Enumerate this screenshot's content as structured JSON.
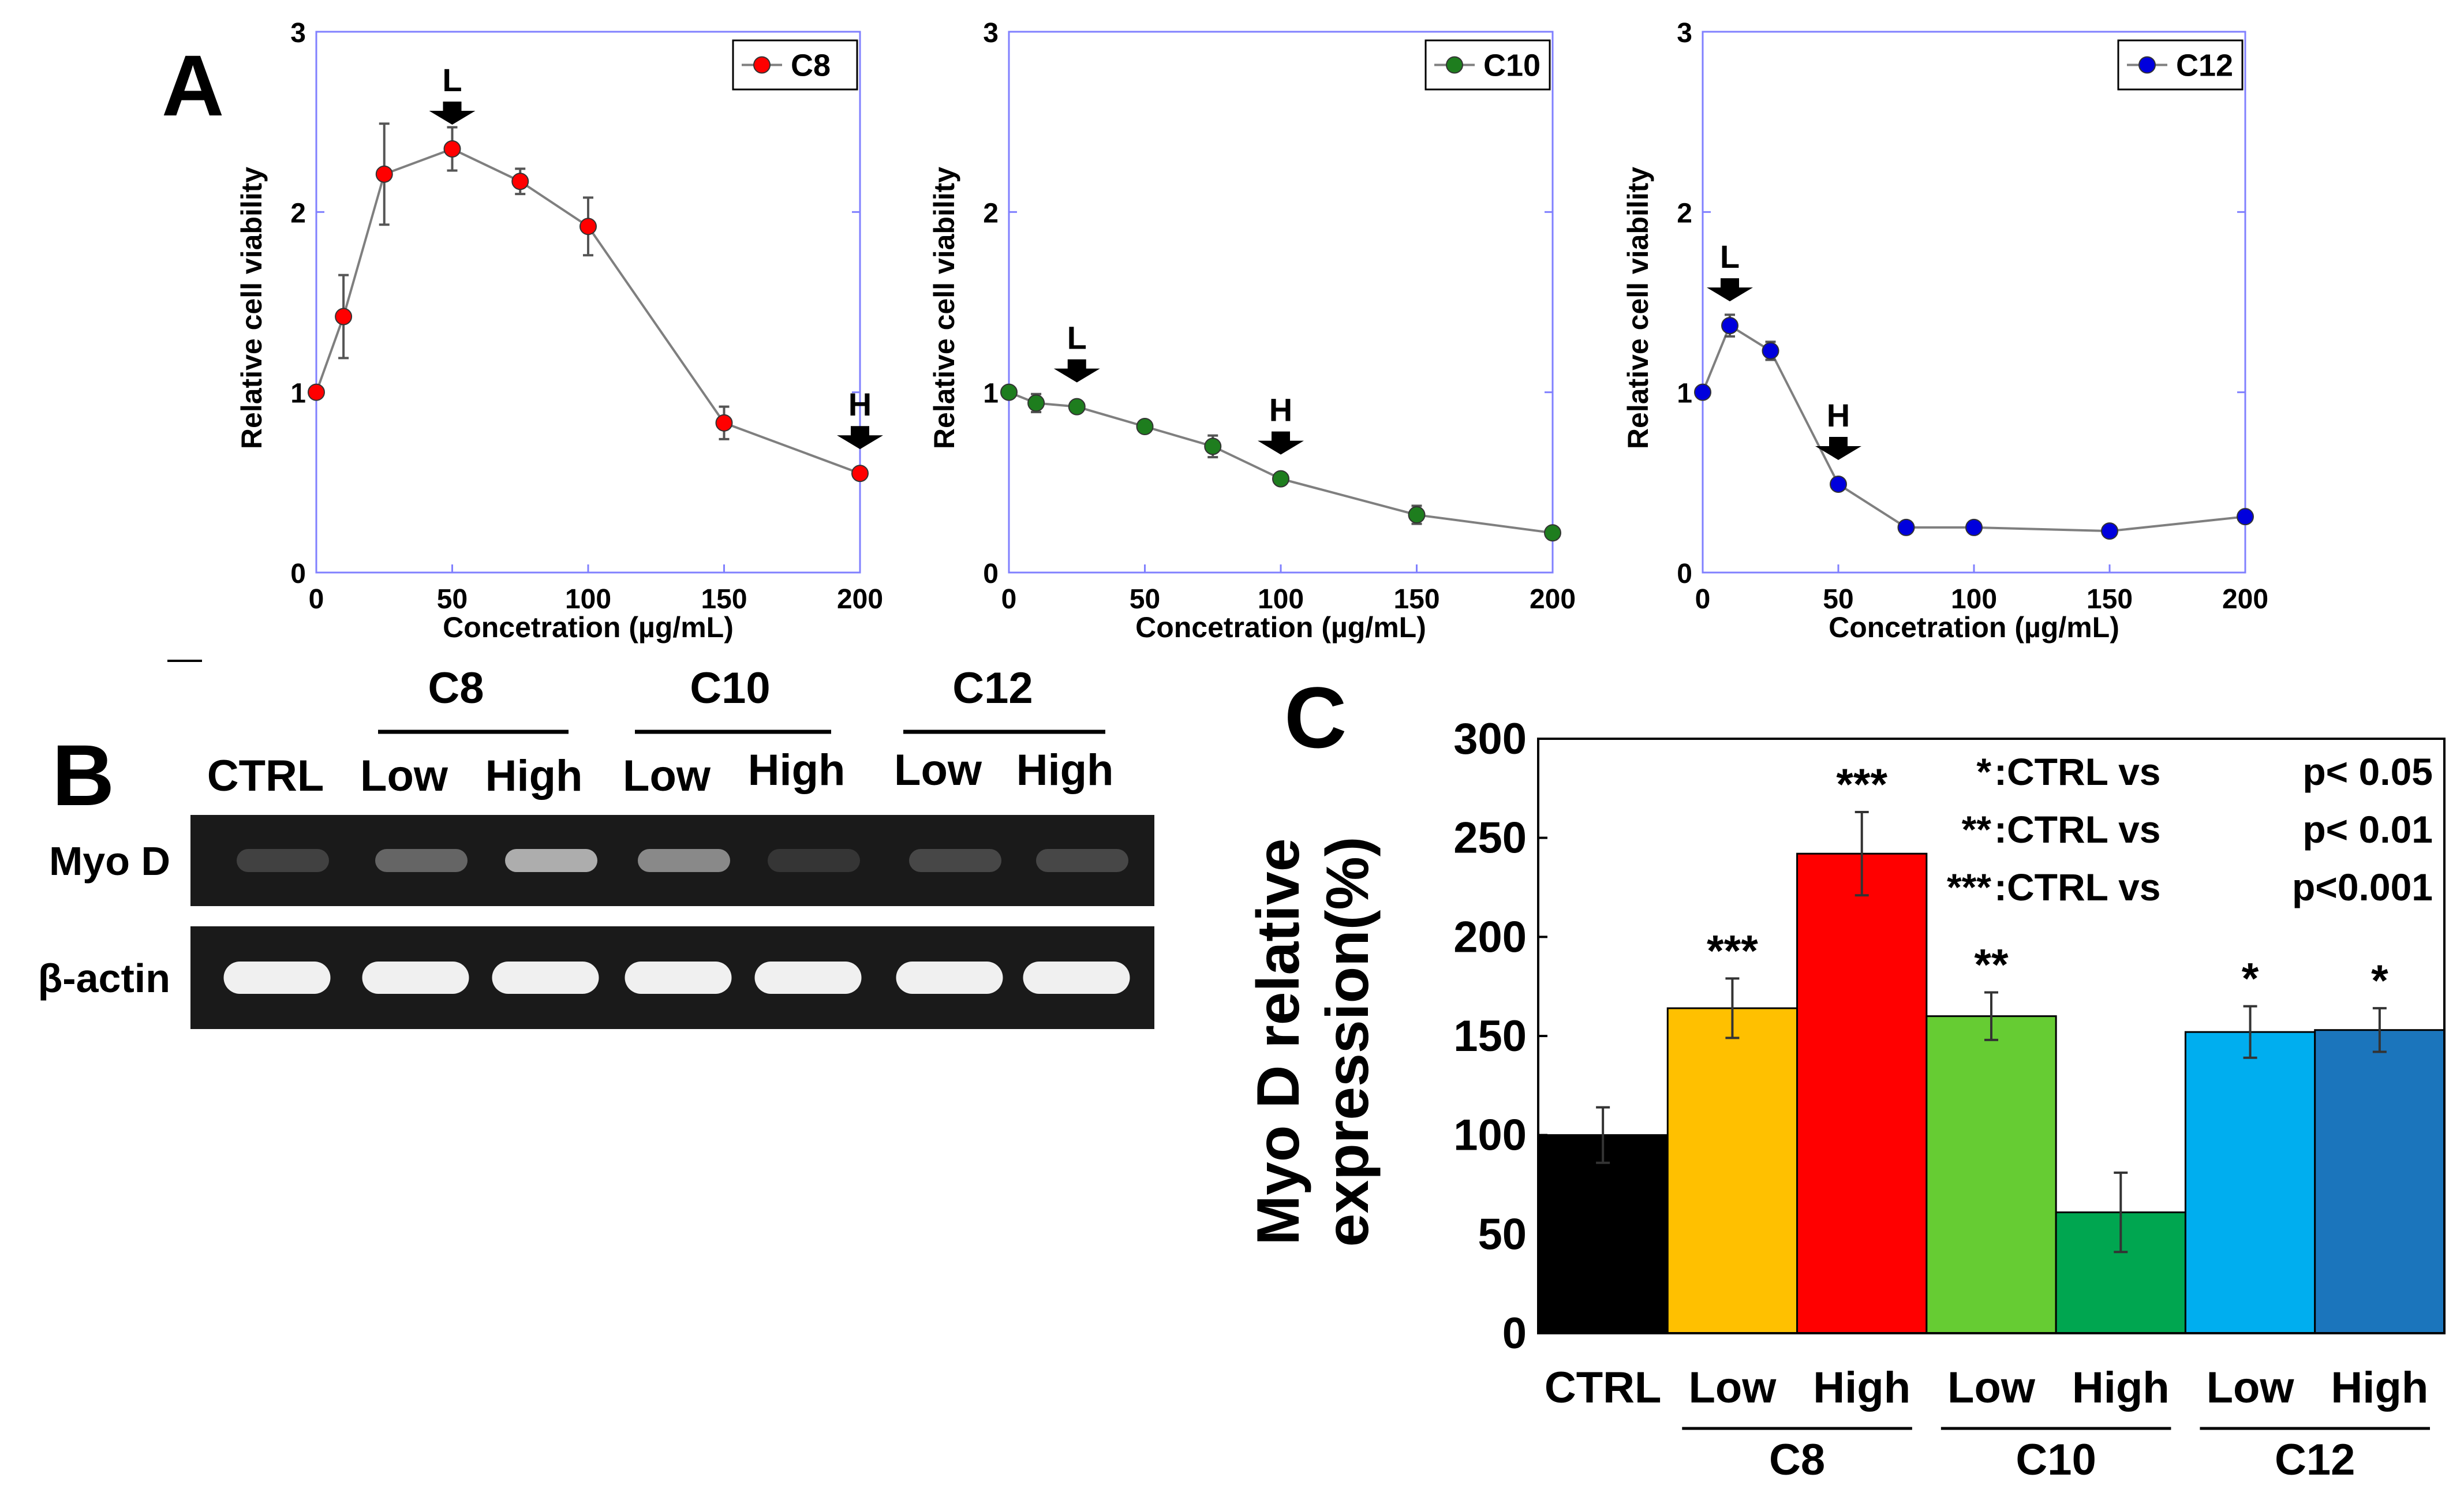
{
  "panel_labels": {
    "a": "A",
    "b": "B",
    "c": "C"
  },
  "colors": {
    "axis_frame": "#8080ff",
    "line": "#7f7f7f",
    "c8": "#ff0000",
    "c10": "#1e7d1e",
    "c12": "#0000dd",
    "bars": [
      "#000000",
      "#ffc000",
      "#ff0000",
      "#66cc33",
      "#00a650",
      "#00aeef",
      "#1b75bc"
    ]
  },
  "chart_data": [
    {
      "type": "line",
      "panel": "A",
      "title": "",
      "xlabel": "Concetration (µg/mL)",
      "ylabel": "Relative cell viability",
      "xlim": [
        0,
        200
      ],
      "ylim": [
        0,
        3
      ],
      "xticks": [
        0,
        50,
        100,
        150,
        200
      ],
      "yticks": [
        0,
        1,
        2,
        3
      ],
      "legend": "C8",
      "series": [
        {
          "name": "C8",
          "x": [
            0,
            10,
            25,
            50,
            75,
            100,
            150,
            200
          ],
          "y": [
            1.0,
            1.42,
            2.21,
            2.35,
            2.17,
            1.92,
            0.83,
            0.55
          ],
          "err": [
            0.02,
            0.23,
            0.28,
            0.12,
            0.07,
            0.16,
            0.09,
            0.03
          ]
        }
      ],
      "annotations": [
        {
          "label": "L",
          "x": 50
        },
        {
          "label": "H",
          "x": 200
        }
      ]
    },
    {
      "type": "line",
      "panel": "A",
      "title": "",
      "xlabel": "Concetration (µg/mL)",
      "ylabel": "Relative cell viability",
      "xlim": [
        0,
        200
      ],
      "ylim": [
        0,
        3
      ],
      "xticks": [
        0,
        50,
        100,
        150,
        200
      ],
      "yticks": [
        0,
        1,
        2,
        3
      ],
      "legend": "C10",
      "series": [
        {
          "name": "C10",
          "x": [
            0,
            10,
            25,
            50,
            75,
            100,
            150,
            200
          ],
          "y": [
            1.0,
            0.94,
            0.92,
            0.81,
            0.7,
            0.52,
            0.32,
            0.22
          ],
          "err": [
            0.02,
            0.05,
            0.03,
            0.02,
            0.06,
            0.03,
            0.05,
            0.02
          ]
        }
      ],
      "annotations": [
        {
          "label": "L",
          "x": 25
        },
        {
          "label": "H",
          "x": 100
        }
      ]
    },
    {
      "type": "line",
      "panel": "A",
      "title": "",
      "xlabel": "Concetration (µg/mL)",
      "ylabel": "Relative cell viability",
      "xlim": [
        0,
        200
      ],
      "ylim": [
        0,
        3
      ],
      "xticks": [
        0,
        50,
        100,
        150,
        200
      ],
      "yticks": [
        0,
        1,
        2,
        3
      ],
      "legend": "C12",
      "series": [
        {
          "name": "C12",
          "x": [
            0,
            10,
            25,
            50,
            75,
            100,
            150,
            200
          ],
          "y": [
            1.0,
            1.37,
            1.23,
            0.49,
            0.25,
            0.25,
            0.23,
            0.31
          ],
          "err": [
            0.02,
            0.06,
            0.05,
            0.02,
            0.02,
            0.02,
            0.02,
            0.02
          ]
        }
      ],
      "annotations": [
        {
          "label": "L",
          "x": 10
        },
        {
          "label": "H",
          "x": 50
        }
      ]
    },
    {
      "type": "bar",
      "panel": "C",
      "title": "",
      "xlabel": "",
      "ylabel": "Myo D relative expression(%)",
      "ylim": [
        0,
        300
      ],
      "yticks": [
        0,
        50,
        100,
        150,
        200,
        250,
        300
      ],
      "categories": [
        "CTRL",
        "Low",
        "High",
        "Low",
        "High",
        "Low",
        "High"
      ],
      "groups": [
        {
          "label": "C8",
          "from": 1,
          "to": 2
        },
        {
          "label": "C10",
          "from": 3,
          "to": 4
        },
        {
          "label": "C12",
          "from": 5,
          "to": 6
        }
      ],
      "values": [
        100,
        164,
        242,
        160,
        61,
        152,
        153
      ],
      "errors": [
        14,
        15,
        21,
        12,
        20,
        13,
        11
      ],
      "significance": [
        "",
        "***",
        "***",
        "**",
        "",
        "*",
        "*"
      ],
      "legend_notes": [
        {
          "stars": "*",
          "text": ":CTRL vs",
          "p": "p<  0.05"
        },
        {
          "stars": "**",
          "text": ":CTRL vs",
          "p": "p<  0.01"
        },
        {
          "stars": "***",
          "text": ":CTRL vs",
          "p": "p<0.001"
        }
      ]
    }
  ],
  "gel": {
    "treatments": [
      {
        "label": "C8",
        "lanes": [
          "Low",
          "High"
        ]
      },
      {
        "label": "C10",
        "lanes": [
          "Low",
          "High"
        ]
      },
      {
        "label": "C12",
        "lanes": [
          "Low",
          "High"
        ]
      }
    ],
    "lane_labels": [
      "CTRL",
      "Low",
      "High",
      "Low",
      "High",
      "Low",
      "High"
    ],
    "rows": [
      {
        "label": "Myo D",
        "band_intensity": [
          0.15,
          0.35,
          0.75,
          0.55,
          0.08,
          0.18,
          0.18
        ]
      },
      {
        "label": "β-actin",
        "band_intensity": [
          1,
          1,
          1,
          1,
          1,
          1,
          1
        ]
      }
    ]
  }
}
